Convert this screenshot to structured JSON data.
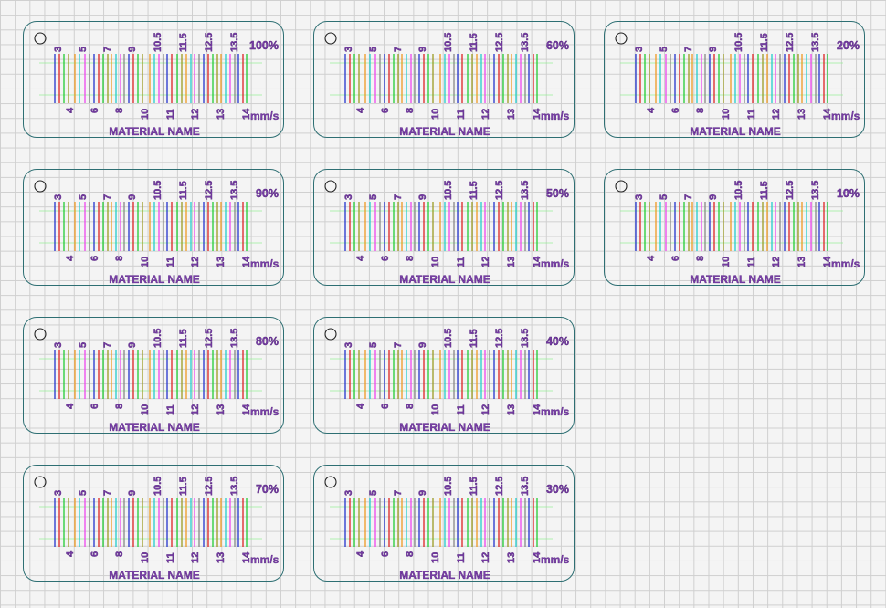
{
  "cards": [
    {
      "percent": "100%",
      "name": "MATERIAL NAME",
      "unit": "mm/s"
    },
    {
      "percent": "60%",
      "name": "MATERIAL NAME",
      "unit": "mm/s"
    },
    {
      "percent": "20%",
      "name": "MATERIAL NAME",
      "unit": "mm/s"
    },
    {
      "percent": "90%",
      "name": "MATERIAL NAME",
      "unit": "mm/s"
    },
    {
      "percent": "50%",
      "name": "MATERIAL NAME",
      "unit": "mm/s"
    },
    {
      "percent": "10%",
      "name": "MATERIAL NAME",
      "unit": "mm/s"
    },
    {
      "percent": "80%",
      "name": "MATERIAL NAME",
      "unit": "mm/s"
    },
    {
      "percent": "40%",
      "name": "MATERIAL NAME",
      "unit": "mm/s"
    },
    {
      "percent": "70%",
      "name": "MATERIAL NAME",
      "unit": "mm/s"
    },
    {
      "percent": "30%",
      "name": "MATERIAL NAME",
      "unit": "mm/s"
    }
  ],
  "top_labels": [
    "3",
    "5",
    "7",
    "9",
    "10.5",
    "11.5",
    "12.5",
    "13.5"
  ],
  "bottom_labels": [
    "4",
    "6",
    "8",
    "10",
    "11",
    "12",
    "13",
    "14"
  ],
  "line_colors": [
    "#2233cc",
    "#dd2222",
    "#22cc33",
    "#9a9a22",
    "#ee9922",
    "#22cccc",
    "#ee44ee",
    "#888888"
  ],
  "colors": {
    "card_border": "#2e6f73",
    "text": "#7a3fa8",
    "guide_line": "#99ee99"
  }
}
